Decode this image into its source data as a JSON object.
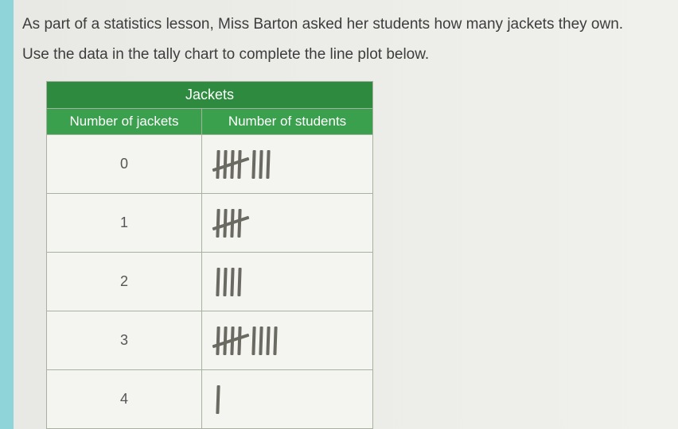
{
  "question": {
    "line1": "As part of a statistics lesson, Miss Barton asked her students how many jackets they own.",
    "line2": "Use the data in the tally chart to complete the line plot below."
  },
  "table": {
    "title": "Jackets",
    "col1_header": "Number of jackets",
    "col2_header": "Number of students",
    "rows": [
      {
        "label": "0",
        "count": 8
      },
      {
        "label": "1",
        "count": 5
      },
      {
        "label": "2",
        "count": 4
      },
      {
        "label": "3",
        "count": 9
      },
      {
        "label": "4",
        "count": 1
      }
    ],
    "header_bg_dark": "#2d8a3e",
    "header_bg_light": "#3aa04d",
    "border_color": "#a8b0a0",
    "tally_color": "#6a6a62"
  }
}
